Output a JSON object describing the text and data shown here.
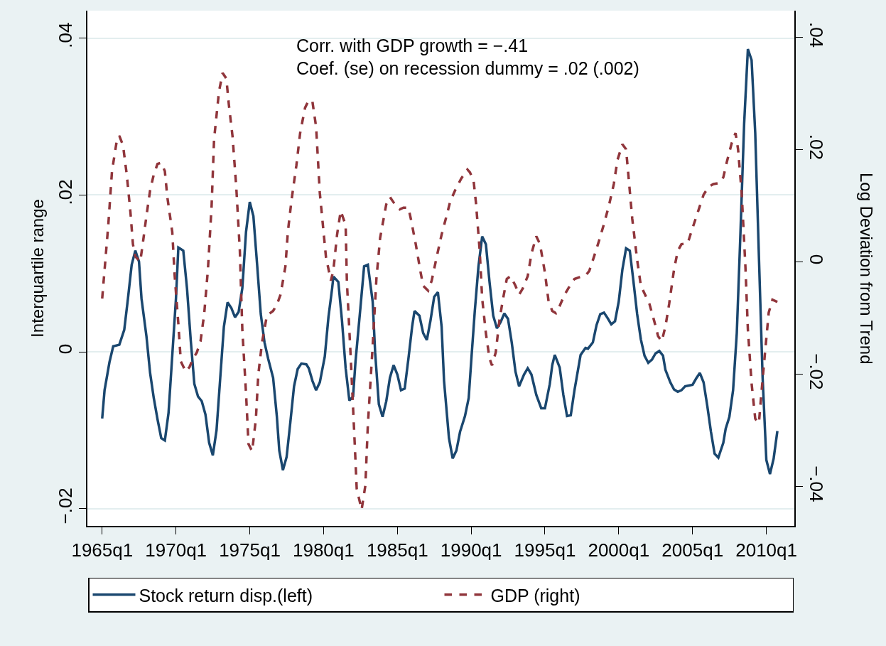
{
  "chart_data": {
    "type": "line",
    "ylabel": "Interquartile range",
    "y2label": "Log Deviation from Trend",
    "annotations": [
      "Corr. with GDP growth = −.41",
      "Coef. (se) on recession dummy = .02 (.002)"
    ],
    "xlim": [
      "1964-01-01",
      "2011-11-25"
    ],
    "xticks": [
      {
        "value": "1965-01",
        "label": "1965q1"
      },
      {
        "value": "1970-01",
        "label": "1970q1"
      },
      {
        "value": "1975-01",
        "label": "1975q1"
      },
      {
        "value": "1980-01",
        "label": "1980q1"
      },
      {
        "value": "1985-01",
        "label": "1985q1"
      },
      {
        "value": "1990-01",
        "label": "1990q1"
      },
      {
        "value": "1995-01",
        "label": "1995q1"
      },
      {
        "value": "2000-01",
        "label": "2000q1"
      },
      {
        "value": "2005-01",
        "label": "2005q1"
      },
      {
        "value": "2010-01",
        "label": "2010q1"
      }
    ],
    "ylim": [
      -0.0222,
      0.0435
    ],
    "yticks": [
      {
        "value": -0.02,
        "label": "−.02"
      },
      0,
      {
        "value": 0.02,
        "label": ".02"
      },
      {
        "value": 0.04,
        "label": ".04"
      }
    ],
    "y2lim": [
      -0.047,
      0.0448
    ],
    "y2ticks": [
      {
        "value": -0.04,
        "label": "−.04"
      },
      {
        "value": -0.02,
        "label": "−.02"
      },
      0,
      {
        "value": 0.02,
        "label": ".02"
      },
      {
        "value": 0.04,
        "label": ".04"
      }
    ],
    "grid": "y",
    "legend": "bottom",
    "marker": "none",
    "series": [
      {
        "name": "Stock return disp.(left)",
        "color": "#1a476f",
        "line_style": "solid",
        "x": [
          "1965-01",
          "1965-03",
          "1965-07",
          "1965-10",
          "1966-03",
          "1966-07",
          "1966-10",
          "1967-01",
          "1967-04",
          "1967-07",
          "1967-09",
          "1968-01",
          "1968-04",
          "1968-07",
          "1968-10",
          "1969-01",
          "1969-04",
          "1969-07",
          "1969-10",
          "1970-01",
          "1970-03",
          "1970-07",
          "1970-10",
          "1971-01",
          "1971-04",
          "1971-07",
          "1971-10",
          "1972-01",
          "1972-04",
          "1972-07",
          "1972-10",
          "1973-01",
          "1973-04",
          "1973-07",
          "1973-10",
          "1974-01",
          "1974-04",
          "1974-07",
          "1974-10",
          "1975-01",
          "1975-04",
          "1975-07",
          "1975-10",
          "1976-01",
          "1976-04",
          "1976-08",
          "1976-11",
          "1977-01",
          "1977-04",
          "1977-07",
          "1977-10",
          "1978-01",
          "1978-04",
          "1978-07",
          "1978-11",
          "1979-01",
          "1979-04",
          "1979-07",
          "1979-10",
          "1980-02",
          "1980-05",
          "1980-08",
          "1980-09",
          "1981-01",
          "1981-04",
          "1981-07",
          "1981-10",
          "1982-01",
          "1982-03",
          "1982-07",
          "1982-10",
          "1983-01",
          "1983-05",
          "1983-07",
          "1983-10",
          "1984-01",
          "1984-04",
          "1984-07",
          "1984-10",
          "1985-01",
          "1985-04",
          "1985-07",
          "1985-10",
          "1986-01",
          "1986-03",
          "1986-07",
          "1986-10",
          "1987-01",
          "1987-04",
          "1987-07",
          "1987-10",
          "1988-01",
          "1988-03",
          "1988-07",
          "1988-10",
          "1989-01",
          "1989-04",
          "1989-08",
          "1989-11",
          "1990-01",
          "1990-04",
          "1990-07",
          "1990-10",
          "1991-01",
          "1991-04",
          "1991-07",
          "1991-10",
          "1992-01",
          "1992-04",
          "1992-07",
          "1992-10",
          "1993-01",
          "1993-04",
          "1993-08",
          "1993-11",
          "1994-02",
          "1994-06",
          "1994-10",
          "1995-01",
          "1995-05",
          "1995-07",
          "1995-09",
          "1996-01",
          "1996-04",
          "1996-07",
          "1996-10",
          "1997-01",
          "1997-06",
          "1997-10",
          "1997-12",
          "1998-04",
          "1998-07",
          "1998-10",
          "1999-01",
          "1999-04",
          "1999-07",
          "1999-10",
          "2000-01",
          "2000-04",
          "2000-07",
          "2000-10",
          "2001-01",
          "2001-04",
          "2001-07",
          "2001-10",
          "2002-01",
          "2002-04",
          "2002-07",
          "2002-10",
          "2003-01",
          "2003-03",
          "2003-07",
          "2003-10",
          "2004-01",
          "2004-04",
          "2004-07",
          "2004-10",
          "2005-01",
          "2005-04",
          "2005-07",
          "2005-10",
          "2006-01",
          "2006-04",
          "2006-07",
          "2006-10",
          "2007-02",
          "2007-04",
          "2007-07",
          "2007-10",
          "2008-01",
          "2008-04",
          "2008-07",
          "2008-10",
          "2009-01",
          "2009-04",
          "2009-07",
          "2009-10",
          "2010-01",
          "2010-04",
          "2010-07",
          "2010-10"
        ],
        "values": [
          -0.0085,
          -0.0049,
          -0.0013,
          0.0007,
          0.0009,
          0.0028,
          0.0068,
          0.0111,
          0.0129,
          0.0115,
          0.0068,
          0.002,
          -0.0027,
          -0.0059,
          -0.0086,
          -0.011,
          -0.0113,
          -0.0078,
          -0.0005,
          0.0068,
          0.0133,
          0.0129,
          0.0081,
          0.0015,
          -0.0041,
          -0.0057,
          -0.0063,
          -0.008,
          -0.0116,
          -0.0132,
          -0.01,
          -0.0033,
          0.0032,
          0.0063,
          0.0056,
          0.0044,
          0.0051,
          0.0081,
          0.0153,
          0.0191,
          0.0173,
          0.0112,
          0.0048,
          0.0012,
          -0.0009,
          -0.0033,
          -0.0082,
          -0.0126,
          -0.0151,
          -0.0134,
          -0.009,
          -0.0044,
          -0.0022,
          -0.0015,
          -0.0016,
          -0.0021,
          -0.0037,
          -0.0049,
          -0.0039,
          -0.0006,
          0.0044,
          0.0081,
          0.0096,
          0.0089,
          0.004,
          -0.0021,
          -0.0062,
          -0.0057,
          -0.0013,
          0.0056,
          0.0109,
          0.0111,
          0.0064,
          -0.0001,
          -0.0067,
          -0.0083,
          -0.0063,
          -0.0033,
          -0.0017,
          -0.0029,
          -0.0049,
          -0.0047,
          -0.0009,
          0.0032,
          0.0052,
          0.0046,
          0.0024,
          0.0015,
          0.004,
          0.007,
          0.0076,
          0.0032,
          -0.0037,
          -0.011,
          -0.0136,
          -0.0126,
          -0.0102,
          -0.0082,
          -0.0059,
          -0.0013,
          0.0052,
          0.0109,
          0.0147,
          0.0137,
          0.0089,
          0.0046,
          0.003,
          0.0038,
          0.0049,
          0.0042,
          0.0012,
          -0.0025,
          -0.0044,
          -0.0029,
          -0.0021,
          -0.0029,
          -0.0055,
          -0.0072,
          -0.0072,
          -0.0041,
          -0.0017,
          -0.0004,
          -0.002,
          -0.0055,
          -0.0082,
          -0.0081,
          -0.0049,
          -0.0004,
          0.0005,
          0.0004,
          0.0012,
          0.0034,
          0.0048,
          0.005,
          0.0043,
          0.0035,
          0.0039,
          0.0064,
          0.0105,
          0.0132,
          0.0129,
          0.0089,
          0.0048,
          0.0016,
          -0.0005,
          -0.0014,
          -0.001,
          -0.0002,
          0.0001,
          -0.0005,
          -0.0023,
          -0.0039,
          -0.0048,
          -0.0051,
          -0.0049,
          -0.0044,
          -0.0043,
          -0.0042,
          -0.0034,
          -0.0027,
          -0.0039,
          -0.0069,
          -0.0102,
          -0.013,
          -0.0135,
          -0.0116,
          -0.0098,
          -0.0083,
          -0.0049,
          0.0024,
          0.0153,
          0.0291,
          0.0386,
          0.0372,
          0.0279,
          0.0122,
          -0.0033,
          -0.0138,
          -0.0156,
          -0.0136,
          -0.0101
        ]
      },
      {
        "name": "GDP (right)",
        "color": "#90353b",
        "line_style": "dashed",
        "axis": "y2",
        "x": [
          "1965-01",
          "1965-03",
          "1965-06",
          "1965-09",
          "1966-01",
          "1966-03",
          "1966-06",
          "1966-09",
          "1966-12",
          "1967-02",
          "1967-04",
          "1967-08",
          "1967-10",
          "1968-01",
          "1968-04",
          "1968-07",
          "1968-10",
          "1969-01",
          "1969-04",
          "1969-06",
          "1969-10",
          "1969-12",
          "1970-03",
          "1970-05",
          "1970-09",
          "1970-12",
          "1971-03",
          "1971-06",
          "1971-09",
          "1971-12",
          "1972-03",
          "1972-06",
          "1972-08",
          "1972-12",
          "1973-03",
          "1973-06",
          "1973-08",
          "1973-11",
          "1974-02",
          "1974-05",
          "1974-07",
          "1974-10",
          "1974-12",
          "1975-03",
          "1975-06",
          "1975-08",
          "1975-11",
          "1976-03",
          "1976-08",
          "1976-11",
          "1977-02",
          "1977-06",
          "1977-08",
          "1977-11",
          "1978-03",
          "1978-06",
          "1978-10",
          "1979-01",
          "1979-04",
          "1979-07",
          "1979-10",
          "1980-03",
          "1980-07",
          "1980-09",
          "1980-12",
          "1981-03",
          "1981-07",
          "1981-08",
          "1981-11",
          "1982-02",
          "1982-04",
          "1982-08",
          "1982-11",
          "1983-01",
          "1983-05",
          "1983-08",
          "1983-11",
          "1984-04",
          "1984-07",
          "1984-11",
          "1985-03",
          "1985-06",
          "1985-10",
          "1985-12",
          "1986-04",
          "1986-08",
          "1986-10",
          "1987-02",
          "1987-05",
          "1987-09",
          "1988-01",
          "1988-05",
          "1988-08",
          "1988-12",
          "1989-05",
          "1989-10",
          "1989-12",
          "1990-03",
          "1990-05",
          "1990-08",
          "1990-10",
          "1991-01",
          "1991-04",
          "1991-06",
          "1991-09",
          "1991-12",
          "1992-03",
          "1992-06",
          "1992-09",
          "1993-01",
          "1993-04",
          "1993-07",
          "1993-11",
          "1994-02",
          "1994-06",
          "1994-09",
          "1995-01",
          "1995-04",
          "1995-07",
          "1995-10",
          "1996-01",
          "1996-05",
          "1996-09",
          "1997-01",
          "1997-05",
          "1997-10",
          "1998-01",
          "1998-05",
          "1998-09",
          "1999-01",
          "1999-05",
          "1999-09",
          "1999-12",
          "2000-04",
          "2000-07",
          "2000-09",
          "2000-12",
          "2001-04",
          "2001-07",
          "2001-10",
          "2002-02",
          "2002-06",
          "2002-09",
          "2002-12",
          "2003-03",
          "2003-06",
          "2003-10",
          "2004-01",
          "2004-04",
          "2004-09",
          "2004-12",
          "2005-04",
          "2005-07",
          "2005-10",
          "2006-02",
          "2006-06",
          "2006-11",
          "2007-02",
          "2007-05",
          "2007-09",
          "2007-12",
          "2008-02",
          "2008-05",
          "2008-08",
          "2008-10",
          "2009-01",
          "2009-04",
          "2009-07",
          "2009-09",
          "2009-12",
          "2010-03",
          "2010-06",
          "2010-10"
        ],
        "values": [
          -0.0065,
          -0.0014,
          0.0066,
          0.0162,
          0.0218,
          0.0225,
          0.0208,
          0.0156,
          0.0089,
          0.0032,
          0.001,
          0.0001,
          0.0032,
          0.0082,
          0.0128,
          0.0156,
          0.0175,
          0.0177,
          0.0162,
          0.0116,
          0.0054,
          -0.0025,
          -0.011,
          -0.0177,
          -0.0195,
          -0.0187,
          -0.0172,
          -0.0161,
          -0.0141,
          -0.0092,
          -0.0014,
          0.01,
          0.0219,
          0.0304,
          0.0337,
          0.0327,
          0.0281,
          0.0224,
          0.0134,
          0.002,
          -0.012,
          -0.0234,
          -0.0324,
          -0.0337,
          -0.028,
          -0.02,
          -0.0143,
          -0.0095,
          -0.0087,
          -0.0076,
          -0.0058,
          -0.0008,
          0.0054,
          0.0111,
          0.0173,
          0.023,
          0.0275,
          0.0289,
          0.0286,
          0.0241,
          0.0123,
          0.0009,
          -0.0033,
          -0.0014,
          0.0049,
          0.0091,
          0.0066,
          -0.0035,
          -0.0166,
          -0.0308,
          -0.0404,
          -0.0441,
          -0.0398,
          -0.0291,
          -0.0149,
          -0.003,
          0.0043,
          0.0103,
          0.0116,
          0.0103,
          0.0094,
          0.0097,
          0.0097,
          0.0077,
          0.0032,
          -0.0019,
          -0.0042,
          -0.0051,
          -0.0033,
          0.0009,
          0.0049,
          0.0082,
          0.0108,
          0.0128,
          0.0149,
          0.0165,
          0.016,
          0.0146,
          0.0105,
          0.002,
          -0.0065,
          -0.0127,
          -0.0172,
          -0.0184,
          -0.0161,
          -0.0104,
          -0.0065,
          -0.003,
          -0.0025,
          -0.0042,
          -0.0058,
          -0.0047,
          -0.0025,
          0.0015,
          0.0046,
          0.0032,
          -0.0019,
          -0.007,
          -0.0087,
          -0.0091,
          -0.0078,
          -0.0058,
          -0.0043,
          -0.003,
          -0.0027,
          -0.0024,
          -0.0016,
          0.001,
          0.0038,
          0.0068,
          0.01,
          0.0139,
          0.0182,
          0.021,
          0.0201,
          0.0151,
          0.0077,
          0.0004,
          -0.0042,
          -0.0056,
          -0.0075,
          -0.0106,
          -0.0132,
          -0.0141,
          -0.0115,
          -0.0075,
          -0.0013,
          0.002,
          0.0032,
          0.0033,
          0.0054,
          0.008,
          0.01,
          0.012,
          0.0134,
          0.0139,
          0.0141,
          0.0151,
          0.0179,
          0.0213,
          0.023,
          0.0201,
          0.0123,
          -0.0008,
          -0.012,
          -0.0216,
          -0.0279,
          -0.0287,
          -0.0233,
          -0.016,
          -0.009,
          -0.0067,
          -0.0071
        ]
      }
    ]
  }
}
